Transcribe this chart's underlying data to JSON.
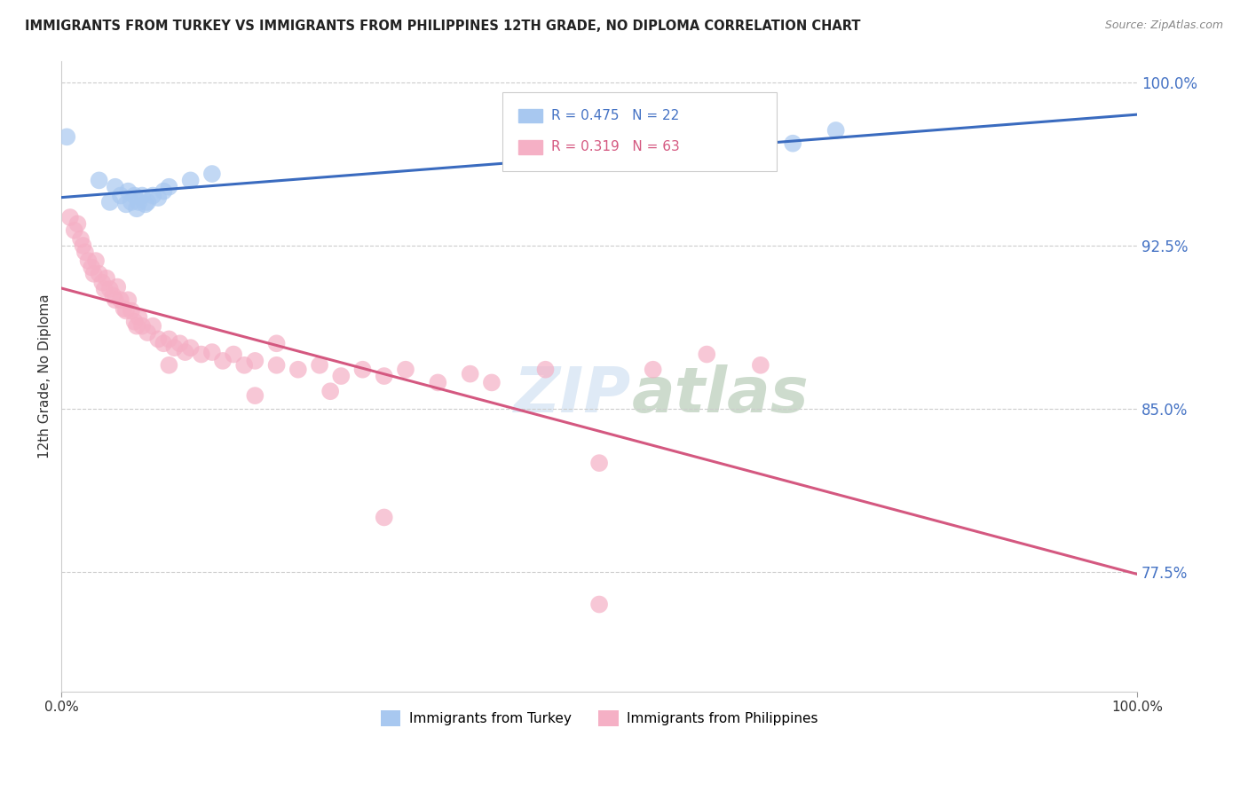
{
  "title": "IMMIGRANTS FROM TURKEY VS IMMIGRANTS FROM PHILIPPINES 12TH GRADE, NO DIPLOMA CORRELATION CHART",
  "source": "Source: ZipAtlas.com",
  "legend_turkey": "Immigrants from Turkey",
  "legend_philippines": "Immigrants from Philippines",
  "R_turkey": 0.475,
  "N_turkey": 22,
  "R_philippines": 0.319,
  "N_philippines": 63,
  "turkey_color": "#a8c8f0",
  "turkey_line_color": "#3a6bbf",
  "philippines_color": "#f5b0c5",
  "philippines_line_color": "#d45880",
  "turkey_x": [
    0.005,
    0.035,
    0.045,
    0.05,
    0.055,
    0.06,
    0.062,
    0.065,
    0.068,
    0.07,
    0.072,
    0.075,
    0.078,
    0.08,
    0.085,
    0.09,
    0.095,
    0.1,
    0.12,
    0.14,
    0.68,
    0.72
  ],
  "turkey_y": [
    0.975,
    0.955,
    0.945,
    0.952,
    0.948,
    0.944,
    0.95,
    0.945,
    0.948,
    0.942,
    0.945,
    0.948,
    0.944,
    0.945,
    0.948,
    0.947,
    0.95,
    0.952,
    0.955,
    0.958,
    0.972,
    0.978
  ],
  "phil_x": [
    0.008,
    0.012,
    0.015,
    0.018,
    0.02,
    0.022,
    0.025,
    0.028,
    0.03,
    0.032,
    0.035,
    0.038,
    0.04,
    0.042,
    0.045,
    0.048,
    0.05,
    0.052,
    0.055,
    0.058,
    0.06,
    0.062,
    0.065,
    0.068,
    0.07,
    0.072,
    0.075,
    0.08,
    0.085,
    0.09,
    0.095,
    0.1,
    0.105,
    0.11,
    0.115,
    0.12,
    0.13,
    0.14,
    0.15,
    0.16,
    0.17,
    0.18,
    0.2,
    0.22,
    0.24,
    0.26,
    0.28,
    0.3,
    0.32,
    0.35,
    0.38,
    0.4,
    0.45,
    0.5,
    0.55,
    0.6,
    0.65,
    0.18,
    0.25,
    0.3,
    0.1,
    0.2,
    0.5
  ],
  "phil_y": [
    0.938,
    0.932,
    0.935,
    0.928,
    0.925,
    0.922,
    0.918,
    0.915,
    0.912,
    0.918,
    0.912,
    0.908,
    0.905,
    0.91,
    0.905,
    0.902,
    0.9,
    0.906,
    0.9,
    0.896,
    0.895,
    0.9,
    0.895,
    0.89,
    0.888,
    0.892,
    0.888,
    0.885,
    0.888,
    0.882,
    0.88,
    0.882,
    0.878,
    0.88,
    0.876,
    0.878,
    0.875,
    0.876,
    0.872,
    0.875,
    0.87,
    0.872,
    0.87,
    0.868,
    0.87,
    0.865,
    0.868,
    0.865,
    0.868,
    0.862,
    0.866,
    0.862,
    0.868,
    0.825,
    0.868,
    0.875,
    0.87,
    0.856,
    0.858,
    0.8,
    0.87,
    0.88,
    0.76
  ],
  "xlim": [
    0.0,
    1.0
  ],
  "ylim": [
    0.72,
    1.01
  ],
  "ytick_vals": [
    0.775,
    0.85,
    0.925,
    1.0
  ],
  "ytick_labels": [
    "77.5%",
    "85.0%",
    "92.5%",
    "100.0%"
  ],
  "background_color": "#ffffff",
  "grid_color": "#cccccc"
}
